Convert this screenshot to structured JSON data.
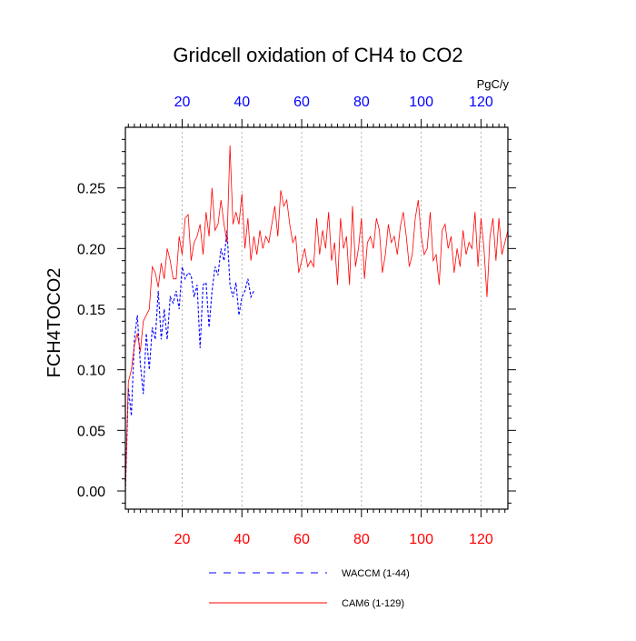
{
  "chart_data": {
    "type": "line",
    "title": "Gridcell oxidation of CH4 to CO2",
    "ylabel": "FCH4TOCO2",
    "units": "PgC/y",
    "xlim": [
      1,
      129
    ],
    "ylim": [
      -0.015,
      0.3
    ],
    "x_ticks": [
      20,
      40,
      60,
      80,
      100,
      120
    ],
    "x_tick_labels": [
      "20",
      "40",
      "60",
      "80",
      "100",
      "120"
    ],
    "y_ticks": [
      0.0,
      0.05,
      0.1,
      0.15,
      0.2,
      0.25
    ],
    "y_tick_labels": [
      "0.00",
      "0.05",
      "0.10",
      "0.15",
      "0.20",
      "0.25"
    ],
    "colors": {
      "bottom_ticks": "#ff0000",
      "top_ticks": "#0000ff",
      "grid": "#b0b0b0",
      "axis": "#000000"
    },
    "series": [
      {
        "name": "WACCM (1-44)",
        "color": "#0000ff",
        "dash": "dashed",
        "values": [
          0.0,
          0.085,
          0.062,
          0.125,
          0.145,
          0.105,
          0.08,
          0.13,
          0.1,
          0.135,
          0.125,
          0.165,
          0.125,
          0.15,
          0.125,
          0.16,
          0.155,
          0.165,
          0.15,
          0.185,
          0.175,
          0.18,
          0.178,
          0.16,
          0.17,
          0.118,
          0.17,
          0.172,
          0.135,
          0.165,
          0.185,
          0.178,
          0.2,
          0.19,
          0.215,
          0.17,
          0.16,
          0.172,
          0.145,
          0.16,
          0.165,
          0.175,
          0.16,
          0.165
        ]
      },
      {
        "name": "CAM6 (1-129)",
        "color": "#ff0000",
        "dash": "solid",
        "values": [
          0.0,
          0.09,
          0.1,
          0.12,
          0.13,
          0.115,
          0.14,
          0.145,
          0.15,
          0.185,
          0.18,
          0.168,
          0.188,
          0.175,
          0.2,
          0.19,
          0.175,
          0.175,
          0.21,
          0.195,
          0.225,
          0.228,
          0.19,
          0.205,
          0.21,
          0.22,
          0.195,
          0.23,
          0.21,
          0.25,
          0.215,
          0.22,
          0.24,
          0.22,
          0.205,
          0.285,
          0.22,
          0.23,
          0.22,
          0.245,
          0.2,
          0.225,
          0.19,
          0.21,
          0.195,
          0.215,
          0.2,
          0.21,
          0.205,
          0.22,
          0.235,
          0.21,
          0.248,
          0.235,
          0.24,
          0.22,
          0.205,
          0.21,
          0.18,
          0.19,
          0.2,
          0.185,
          0.19,
          0.185,
          0.225,
          0.195,
          0.215,
          0.2,
          0.23,
          0.19,
          0.205,
          0.17,
          0.225,
          0.2,
          0.21,
          0.17,
          0.235,
          0.185,
          0.2,
          0.225,
          0.175,
          0.205,
          0.21,
          0.2,
          0.225,
          0.215,
          0.18,
          0.195,
          0.22,
          0.205,
          0.21,
          0.195,
          0.218,
          0.23,
          0.21,
          0.185,
          0.195,
          0.225,
          0.24,
          0.21,
          0.195,
          0.2,
          0.23,
          0.19,
          0.195,
          0.17,
          0.215,
          0.22,
          0.2,
          0.21,
          0.18,
          0.2,
          0.185,
          0.215,
          0.195,
          0.205,
          0.2,
          0.23,
          0.185,
          0.225,
          0.2,
          0.16,
          0.21,
          0.225,
          0.19,
          0.225,
          0.195,
          0.205,
          0.215
        ]
      }
    ]
  }
}
